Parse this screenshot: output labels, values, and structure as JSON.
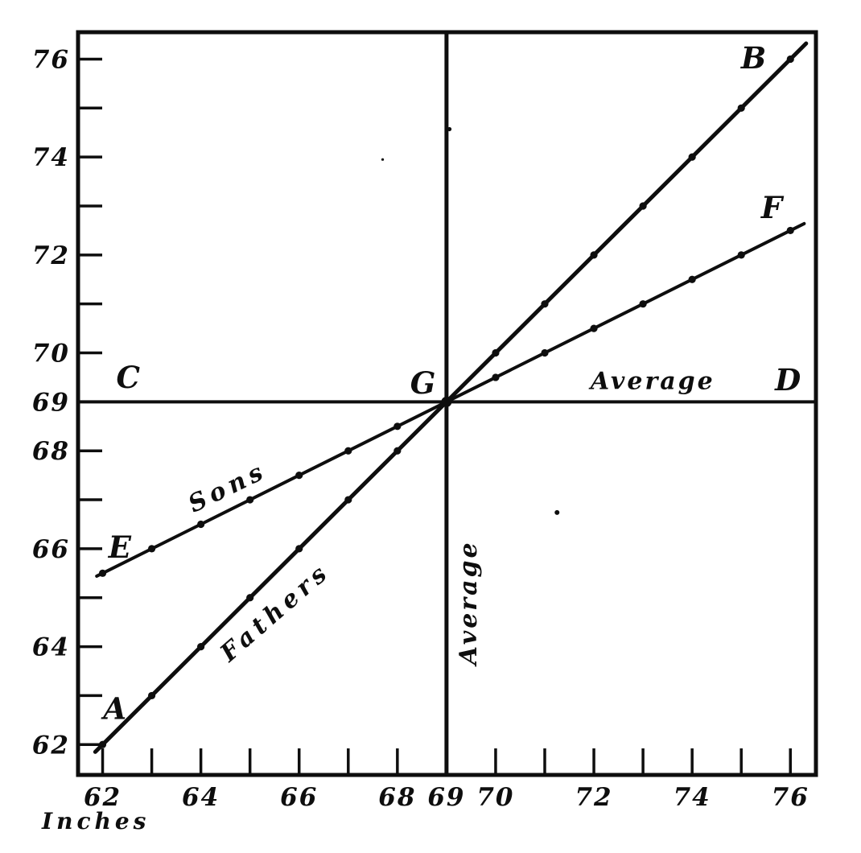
{
  "figure": {
    "paper_color": "#ffffff",
    "ink_color": "#0e0e0e"
  },
  "chart_data": {
    "type": "line",
    "title": "",
    "xlabel": "Inches",
    "ylabel": "",
    "grid": false,
    "legend": "inline labels on lines",
    "xlim": [
      61.5,
      76.52
    ],
    "ylim": [
      61.38,
      76.55
    ],
    "x_minor_ticks": [
      62,
      63,
      64,
      65,
      66,
      67,
      68,
      70,
      71,
      72,
      73,
      74,
      75,
      76
    ],
    "y_minor_ticks": [
      62,
      63,
      64,
      65,
      66,
      67,
      68,
      70,
      71,
      72,
      73,
      74,
      75,
      76
    ],
    "x_labeled_ticks": [
      {
        "v": 62,
        "label": "62"
      },
      {
        "v": 64,
        "label": "64"
      },
      {
        "v": 66,
        "label": "66"
      },
      {
        "v": 68,
        "label": "68"
      },
      {
        "v": 69,
        "label": "69"
      },
      {
        "v": 70,
        "label": "70"
      },
      {
        "v": 72,
        "label": "72"
      },
      {
        "v": 74,
        "label": "74"
      },
      {
        "v": 76,
        "label": "76"
      }
    ],
    "y_labeled_ticks": [
      {
        "v": 76,
        "label": "76"
      },
      {
        "v": 74,
        "label": "74"
      },
      {
        "v": 72,
        "label": "72"
      },
      {
        "v": 70,
        "label": "70"
      },
      {
        "v": 69,
        "label": "69"
      },
      {
        "v": 68,
        "label": "68"
      },
      {
        "v": 66,
        "label": "66"
      },
      {
        "v": 64,
        "label": "64"
      },
      {
        "v": 62,
        "label": "62"
      }
    ],
    "series": [
      {
        "name": "Fathers",
        "x": [
          62,
          63,
          64,
          65,
          66,
          67,
          68,
          69,
          70,
          71,
          72,
          73,
          74,
          75,
          76
        ],
        "y": [
          62,
          63,
          64,
          65,
          66,
          67,
          68,
          69,
          70,
          71,
          72,
          73,
          74,
          75,
          76
        ],
        "line_extent_x": [
          61.85,
          76.32
        ],
        "endpoint_letters": [
          "A",
          "B"
        ]
      },
      {
        "name": "Sons",
        "x": [
          62,
          63,
          64,
          65,
          66,
          67,
          68,
          69,
          70,
          71,
          72,
          73,
          74,
          75,
          76
        ],
        "y": [
          65.5,
          66,
          66.5,
          67,
          67.5,
          68,
          68.5,
          69,
          69.5,
          70,
          70.5,
          71,
          71.5,
          72,
          72.5
        ],
        "line_extent_x": [
          61.88,
          76.28
        ],
        "endpoint_letters": [
          "E",
          "F"
        ]
      }
    ],
    "reference_lines": [
      {
        "orientation": "horizontal",
        "value": 69,
        "label": "Average",
        "endpoint_letters": [
          "C",
          "D"
        ]
      },
      {
        "orientation": "vertical",
        "value": 69,
        "label": "Average"
      }
    ],
    "intersection_point": {
      "letter": "G",
      "x": 69,
      "y": 69
    },
    "annotations": [
      {
        "text": "A",
        "x": 62.25,
        "y": 62.74,
        "style": "letter"
      },
      {
        "text": "B",
        "x": 75.25,
        "y": 76.02,
        "style": "letter"
      },
      {
        "text": "C",
        "x": 62.52,
        "y": 69.5,
        "style": "letter"
      },
      {
        "text": "G",
        "x": 68.52,
        "y": 69.38,
        "style": "letter"
      },
      {
        "text": "D",
        "x": 75.95,
        "y": 69.45,
        "style": "letter"
      },
      {
        "text": "E",
        "x": 62.35,
        "y": 66.03,
        "style": "letter"
      },
      {
        "text": "F",
        "x": 75.62,
        "y": 72.97,
        "style": "letter"
      },
      {
        "text": "Sons",
        "x": 64.55,
        "y": 67.25,
        "rotate": -26,
        "style": "series-label"
      },
      {
        "text": "Fathers",
        "x": 65.52,
        "y": 64.7,
        "rotate": -41,
        "style": "series-label"
      },
      {
        "text": "Average",
        "x": 73.2,
        "y": 69.42,
        "style": "ref-label"
      },
      {
        "text": "Average",
        "x": 69.45,
        "y": 64.9,
        "rotate": -90,
        "style": "ref-label"
      }
    ],
    "scan_specks": [
      {
        "x": 69.06,
        "y": 74.57,
        "r": 2.6
      },
      {
        "x": 71.25,
        "y": 66.74,
        "r": 3.0
      },
      {
        "x": 67.7,
        "y": 73.95,
        "r": 1.6
      }
    ]
  }
}
